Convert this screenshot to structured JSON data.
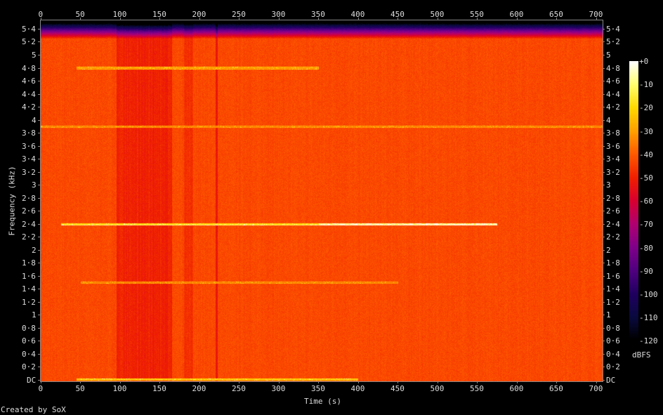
{
  "chart_data": {
    "type": "heatmap",
    "subtype": "spectrogram",
    "xlabel": "Time (s)",
    "ylabel": "Frequency (kHz)",
    "xlim": [
      0,
      708
    ],
    "ylim": [
      0,
      5.5125
    ],
    "x_ticks": [
      "0",
      "50",
      "100",
      "150",
      "200",
      "250",
      "300",
      "350",
      "400",
      "450",
      "500",
      "550",
      "600",
      "650",
      "700"
    ],
    "y_ticks": [
      "DC",
      "0·2",
      "0·4",
      "0·6",
      "0·8",
      "1",
      "1·2",
      "1·4",
      "1·6",
      "1·8",
      "2",
      "2·2",
      "2·4",
      "2·6",
      "2·8",
      "3",
      "3·2",
      "3·4",
      "3·6",
      "3·8",
      "4",
      "4·2",
      "4·4",
      "4·6",
      "4·8",
      "5",
      "5·2",
      "5·4"
    ],
    "colorbar": {
      "unit": "dBFS",
      "range": [
        -120,
        0
      ],
      "ticks": [
        "+0",
        "-10",
        "-20",
        "-30",
        "-40",
        "-50",
        "-60",
        "-70",
        "-80",
        "-90",
        "-100",
        "-110",
        "-120"
      ],
      "colors": [
        "#ffffff",
        "#ffff70",
        "#ffd800",
        "#ffa000",
        "#ff5a00",
        "#f02000",
        "#d80030",
        "#b00070",
        "#80008a",
        "#500080",
        "#200060",
        "#0a0a40",
        "#000000"
      ]
    },
    "background_level_dbfs": -43,
    "louder_bands": [
      {
        "t": [
          95,
          165
        ],
        "level_dbfs": -50
      },
      {
        "t": [
          180,
          192
        ],
        "level_dbfs": -48
      },
      {
        "t": [
          220,
          223
        ],
        "level_dbfs": -52
      }
    ],
    "tones": [
      {
        "freq_khz": 2.4,
        "t": [
          25,
          575
        ],
        "level_dbfs": -20
      },
      {
        "freq_khz": 4.8,
        "t": [
          45,
          350
        ],
        "level_dbfs": -33
      },
      {
        "freq_khz": 3.9,
        "t": [
          0,
          708
        ],
        "level_dbfs": -38
      },
      {
        "freq_khz": 1.5,
        "t": [
          50,
          450
        ],
        "level_dbfs": -38
      },
      {
        "freq_khz": 0.01,
        "t": [
          45,
          400
        ],
        "level_dbfs": -28
      }
    ]
  },
  "footer": {
    "credit": "Created by SoX"
  }
}
